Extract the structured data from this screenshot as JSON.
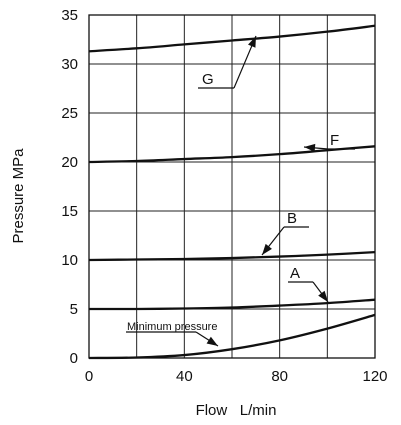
{
  "chart_data": {
    "type": "line",
    "xlabel": "Flow   L/min",
    "ylabel": "Pressure   MPa",
    "xlim": [
      0,
      120
    ],
    "ylim": [
      0,
      35
    ],
    "xticks": [
      "0",
      "40",
      "80",
      "120"
    ],
    "yticks": [
      "0",
      "5",
      "10",
      "15",
      "20",
      "25",
      "30",
      "35"
    ],
    "grid": true,
    "series": [
      {
        "name": "G",
        "x": [
          0,
          20,
          40,
          60,
          80,
          100,
          120
        ],
        "y": [
          31.3,
          31.6,
          32.0,
          32.4,
          32.8,
          33.3,
          33.9
        ]
      },
      {
        "name": "F",
        "x": [
          0,
          20,
          40,
          60,
          80,
          100,
          120
        ],
        "y": [
          20.0,
          20.1,
          20.3,
          20.5,
          20.8,
          21.2,
          21.6
        ]
      },
      {
        "name": "B",
        "x": [
          0,
          20,
          40,
          60,
          80,
          100,
          120
        ],
        "y": [
          10.0,
          10.05,
          10.1,
          10.2,
          10.35,
          10.55,
          10.8
        ]
      },
      {
        "name": "A",
        "x": [
          0,
          20,
          40,
          60,
          80,
          100,
          120
        ],
        "y": [
          5.0,
          5.0,
          5.05,
          5.15,
          5.35,
          5.6,
          5.95
        ]
      },
      {
        "name": "Minimum pressure",
        "x": [
          0,
          20,
          40,
          60,
          80,
          100,
          120
        ],
        "y": [
          0.0,
          0.05,
          0.3,
          0.9,
          1.8,
          3.0,
          4.4
        ]
      }
    ]
  }
}
